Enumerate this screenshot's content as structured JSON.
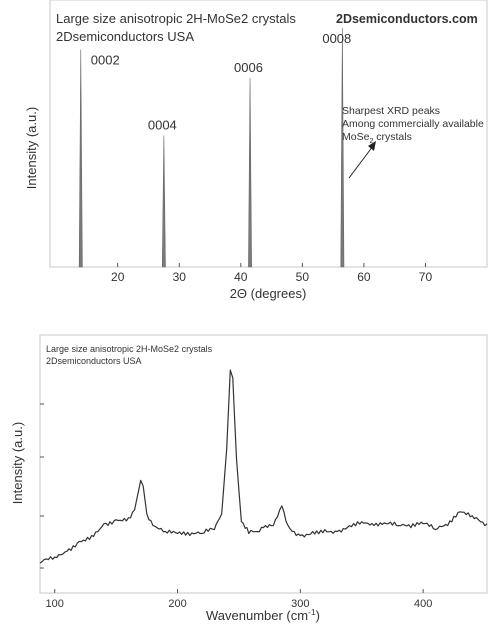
{
  "chart_data": [
    {
      "type": "line",
      "title_lines": [
        "Large size anisotropic 2H-MoSe2 crystals",
        "2Dsemiconductors USA"
      ],
      "brand": "2Dsemiconductors.com",
      "xlabel": "2Θ (degrees)",
      "ylabel": "Intensity (a.u.)",
      "xlim": [
        9,
        80
      ],
      "ylim": [
        0,
        100
      ],
      "xticks": [
        20,
        30,
        40,
        50,
        60,
        70
      ],
      "peaks": [
        {
          "x": 14.0,
          "height": 91,
          "label": "0002"
        },
        {
          "x": 27.5,
          "height": 55,
          "label": "0004"
        },
        {
          "x": 41.5,
          "height": 79,
          "label": "0006"
        },
        {
          "x": 56.5,
          "height": 100,
          "label": "0008"
        }
      ],
      "annotation": {
        "lines": [
          "Sharpest XRD peaks",
          "Among commercially available",
          "MoSe₂ crystals"
        ],
        "parts": {
          "base": "MoSe",
          "sub": "2",
          "rest": " crystals"
        }
      }
    },
    {
      "type": "line",
      "title_lines": [
        "Large size anisotropic 2H-MoSe2 crystals",
        "2Dsemiconductors USA"
      ],
      "xlabel_main": "Wavenumber (cm",
      "xlabel_sup": "-1",
      "xlabel_end": ")",
      "ylabel": "Intensity (a.u.)",
      "xlim": [
        88,
        452
      ],
      "ylim": [
        0,
        100
      ],
      "xticks": [
        100,
        200,
        300,
        400
      ],
      "x": [
        88,
        100,
        110,
        120,
        130,
        140,
        150,
        160,
        165,
        170,
        172,
        175,
        180,
        190,
        200,
        210,
        220,
        230,
        236,
        240,
        243,
        245,
        248,
        252,
        258,
        265,
        270,
        278,
        285,
        290,
        295,
        300,
        310,
        320,
        330,
        340,
        350,
        360,
        370,
        380,
        390,
        400,
        410,
        420,
        430,
        440,
        445,
        452
      ],
      "y": [
        2,
        5,
        8,
        13,
        16,
        22,
        24,
        25,
        29,
        44,
        41,
        27,
        21,
        18,
        17,
        16,
        17,
        19,
        27,
        60,
        100,
        96,
        55,
        23,
        17,
        18,
        20,
        21,
        31,
        21,
        18,
        16,
        18,
        19,
        18,
        21,
        23,
        21,
        22,
        21,
        20,
        22,
        19,
        21,
        28,
        26,
        24,
        22
      ]
    }
  ]
}
